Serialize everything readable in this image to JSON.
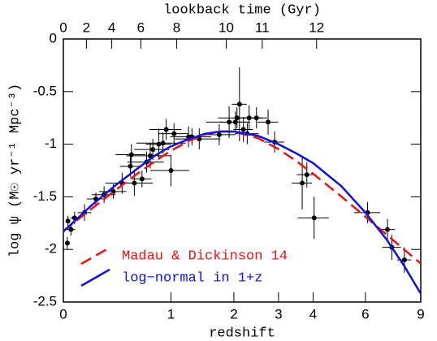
{
  "chart_data": {
    "type": "line",
    "xlabel": "redshift",
    "x2label": "lookback time (Gyr)",
    "ylabel": "log ψ (M☉ yr⁻¹ Mpc⁻³)",
    "xscale": "log1p",
    "xlim": [
      0,
      9
    ],
    "xticks": [
      0,
      1,
      2,
      3,
      4,
      6,
      9
    ],
    "x2ticks": [
      0,
      2,
      4,
      6,
      8,
      10,
      11,
      12
    ],
    "ylim": [
      -2.5,
      0
    ],
    "yticks": [
      -2.5,
      -2,
      -1.5,
      -1,
      -0.5,
      0
    ],
    "legend": "lower left",
    "x": [
      0,
      0.2,
      0.4,
      0.6,
      0.8,
      1,
      1.25,
      1.5,
      1.75,
      2,
      2.5,
      3,
      3.5,
      4,
      5,
      6,
      7,
      8,
      9
    ],
    "series": [
      {
        "name": "Madau & Dickinson 14",
        "color": "#ee1111",
        "dashed": true,
        "values": [
          -1.825,
          -1.613,
          -1.437,
          -1.288,
          -1.164,
          -1.062,
          -0.967,
          -0.906,
          -0.879,
          -0.88,
          -0.942,
          -1.047,
          -1.164,
          -1.281,
          -1.498,
          -1.689,
          -1.855,
          -2.003,
          -2.134
        ]
      },
      {
        "name": "log−normal in 1+z",
        "color": "#1111dd",
        "dashed": false,
        "values": [
          -1.83,
          -1.58,
          -1.39,
          -1.24,
          -1.11,
          -1.02,
          -0.95,
          -0.9,
          -0.88,
          -0.88,
          -0.92,
          -1.0,
          -1.09,
          -1.18,
          -1.4,
          -1.65,
          -1.9,
          -2.16,
          -2.42
        ]
      }
    ],
    "points": {
      "color": "#000000",
      "x": [
        0.026,
        0.03,
        0.05,
        0.075,
        0.146,
        0.233,
        0.3,
        0.38,
        0.46,
        0.54,
        0.55,
        0.58,
        0.66,
        0.71,
        0.75,
        0.78,
        0.85,
        0.9,
        0.94,
        1.0,
        1.04,
        1.24,
        1.29,
        1.4,
        1.73,
        1.91,
        2.03,
        2.06,
        2.11,
        2.19,
        2.31,
        2.47,
        2.27,
        2.74,
        2.9,
        3.66,
        3.8,
        4.03,
        6.1,
        7.07,
        7.3,
        8.0
      ],
      "values": [
        -1.94,
        -1.73,
        -1.81,
        -1.7,
        -1.65,
        -1.52,
        -1.48,
        -1.45,
        -1.37,
        -1.21,
        -1.1,
        -1.37,
        -1.33,
        -1.17,
        -1.11,
        -1.05,
        -1.0,
        -0.99,
        -0.86,
        -1.25,
        -0.9,
        -0.93,
        -0.93,
        -0.95,
        -0.91,
        -0.79,
        -0.79,
        -0.75,
        -0.62,
        -0.86,
        -0.75,
        -0.75,
        -0.9,
        -0.79,
        -0.98,
        -1.37,
        -1.29,
        -1.7,
        -1.65,
        -1.81,
        -1.98,
        -2.1
      ],
      "xerr": [
        0.01,
        0.01,
        0.03,
        0.03,
        0.05,
        0.07,
        0.1,
        0.12,
        0.15,
        0.1,
        0.15,
        0.2,
        0.1,
        0.2,
        0.25,
        0.2,
        0.15,
        0.3,
        0.2,
        0.25,
        0.2,
        0.25,
        0.3,
        0.35,
        0.3,
        0.4,
        0.3,
        0.35,
        0.15,
        0.2,
        0.3,
        0.25,
        0.25,
        0.25,
        0.25,
        0.3,
        0.3,
        0.5,
        0.6,
        0.4,
        0.5,
        0.4
      ],
      "yerr": [
        0.06,
        0.05,
        0.06,
        0.06,
        0.08,
        0.06,
        0.08,
        0.07,
        0.1,
        0.1,
        0.1,
        0.12,
        0.08,
        0.1,
        0.12,
        0.1,
        0.15,
        0.1,
        0.1,
        0.15,
        0.1,
        0.1,
        0.08,
        0.1,
        0.1,
        0.15,
        0.1,
        0.1,
        0.35,
        0.12,
        0.12,
        0.1,
        0.1,
        0.12,
        0.1,
        0.25,
        0.12,
        0.2,
        0.1,
        0.1,
        0.12,
        0.12
      ]
    }
  }
}
